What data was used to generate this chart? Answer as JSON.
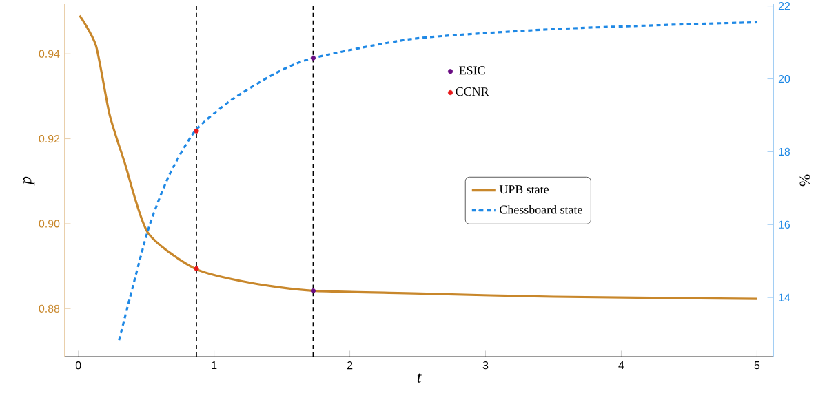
{
  "chart_data": {
    "type": "line",
    "xlabel": "t",
    "ylabel": "p",
    "y2label": "%",
    "xlim": [
      -0.1,
      5.12
    ],
    "xticks": [
      0,
      1,
      2,
      3,
      4,
      5
    ],
    "ylim": [
      0.8687,
      0.9517
    ],
    "yticks": [
      0.88,
      {
        "value": 0.9,
        "label": "0.90"
      },
      0.92,
      0.94
    ],
    "y2lim": [
      12.38,
      22.05
    ],
    "y2ticks": [
      14,
      16,
      18,
      20,
      22
    ],
    "legend": "right",
    "grid": false,
    "ref_lines": [
      {
        "axis": "x",
        "value": 0.87,
        "color": "#000000",
        "line_style": "dashed"
      },
      {
        "axis": "x",
        "value": 1.73,
        "color": "#000000",
        "line_style": "dashed"
      }
    ],
    "series": [
      {
        "name": "UPB state",
        "color": "#c8872b",
        "line_style": "solid",
        "x": [
          0.01,
          0.13,
          0.23,
          0.34,
          0.51,
          0.86,
          1.28,
          1.73,
          2.47,
          3.5,
          5.0
        ],
        "values": [
          0.949,
          0.9419,
          0.9257,
          0.9145,
          0.898,
          0.8894,
          0.886,
          0.8842,
          0.8836,
          0.8828,
          0.8823
        ]
      },
      {
        "name": "Chessboard state",
        "axis": "y2",
        "color": "#1e88e5",
        "line_style": "dashed",
        "x": [
          0.3,
          0.51,
          0.67,
          0.86,
          1.12,
          1.45,
          1.73,
          2.47,
          3.48,
          4.5,
          5.0
        ],
        "values": [
          12.83,
          15.81,
          17.36,
          18.57,
          19.4,
          20.15,
          20.57,
          21.1,
          21.36,
          21.5,
          21.55
        ]
      },
      {
        "name": "ESIC",
        "type": "scatter",
        "marker": "circle",
        "color": "#6a0d83",
        "x": [
          1.73
        ],
        "values": [
          0.8842
        ]
      },
      {
        "type": "scatter",
        "marker": "circle",
        "axis": "y2",
        "color": "#6a0d83",
        "x": [
          1.73
        ],
        "values": [
          20.57
        ]
      },
      {
        "name": "CCNR",
        "type": "scatter",
        "marker": "circle",
        "color": "#e8191a",
        "x": [
          0.87
        ],
        "values": [
          0.8894
        ]
      },
      {
        "type": "scatter",
        "marker": "circle",
        "axis": "y2",
        "color": "#e8191a",
        "x": [
          0.87
        ],
        "values": [
          18.57
        ]
      }
    ]
  }
}
